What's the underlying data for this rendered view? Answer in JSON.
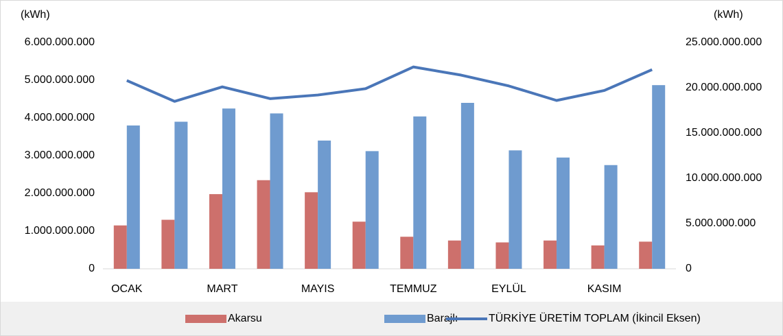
{
  "chart_data": {
    "type": "bar_line",
    "y_label": "(kWh)",
    "y2_label": "(kWh)",
    "categories": [
      "OCAK",
      null,
      "MART",
      null,
      "MAYIS",
      null,
      "TEMMUZ",
      null,
      "EYLÜL",
      null,
      "KASIM",
      null
    ],
    "series": [
      {
        "name": "Akarsu",
        "type": "bar",
        "color": "#cd706c",
        "values": [
          1150000000,
          1300000000,
          1980000000,
          2350000000,
          2030000000,
          1250000000,
          850000000,
          750000000,
          700000000,
          750000000,
          620000000,
          720000000
        ]
      },
      {
        "name": "Barajlı",
        "type": "bar",
        "color": "#6f9bcf",
        "values": [
          3800000000,
          3900000000,
          4250000000,
          4120000000,
          3400000000,
          3120000000,
          4040000000,
          4400000000,
          3140000000,
          2950000000,
          2750000000,
          4870000000
        ]
      },
      {
        "name": "TÜRKİYE ÜRETİM TOPLAM (İkincil Eksen)",
        "type": "line",
        "axis": "y2",
        "color": "#4a76b8",
        "values": [
          20800000000,
          18500000000,
          20100000000,
          18800000000,
          19200000000,
          19900000000,
          22300000000,
          21400000000,
          20200000000,
          18600000000,
          19700000000,
          22000000000
        ]
      }
    ],
    "ylim": [
      0,
      6000000000
    ],
    "yticks": [
      0,
      {
        "value": 1000000000,
        "label": "1.000.000.000"
      },
      {
        "value": 2000000000,
        "label": "2.000.000.000"
      },
      {
        "value": 3000000000,
        "label": "3.000.000.000"
      },
      {
        "value": 4000000000,
        "label": "4.000.000.000"
      },
      {
        "value": 5000000000,
        "label": "5.000.000.000"
      },
      {
        "value": 6000000000,
        "label": "6.000.000.000"
      }
    ],
    "y2lim": [
      0,
      25000000000
    ],
    "y2ticks": [
      0,
      {
        "value": 5000000000,
        "label": "5.000.000.000"
      },
      {
        "value": 10000000000,
        "label": "10.000.000.000"
      },
      {
        "value": 15000000000,
        "label": "15.000.000.000"
      },
      {
        "value": 20000000000,
        "label": "20.000.000.000"
      },
      {
        "value": 25000000000,
        "label": "25.000.000.000"
      }
    ],
    "legend": "bottom"
  }
}
